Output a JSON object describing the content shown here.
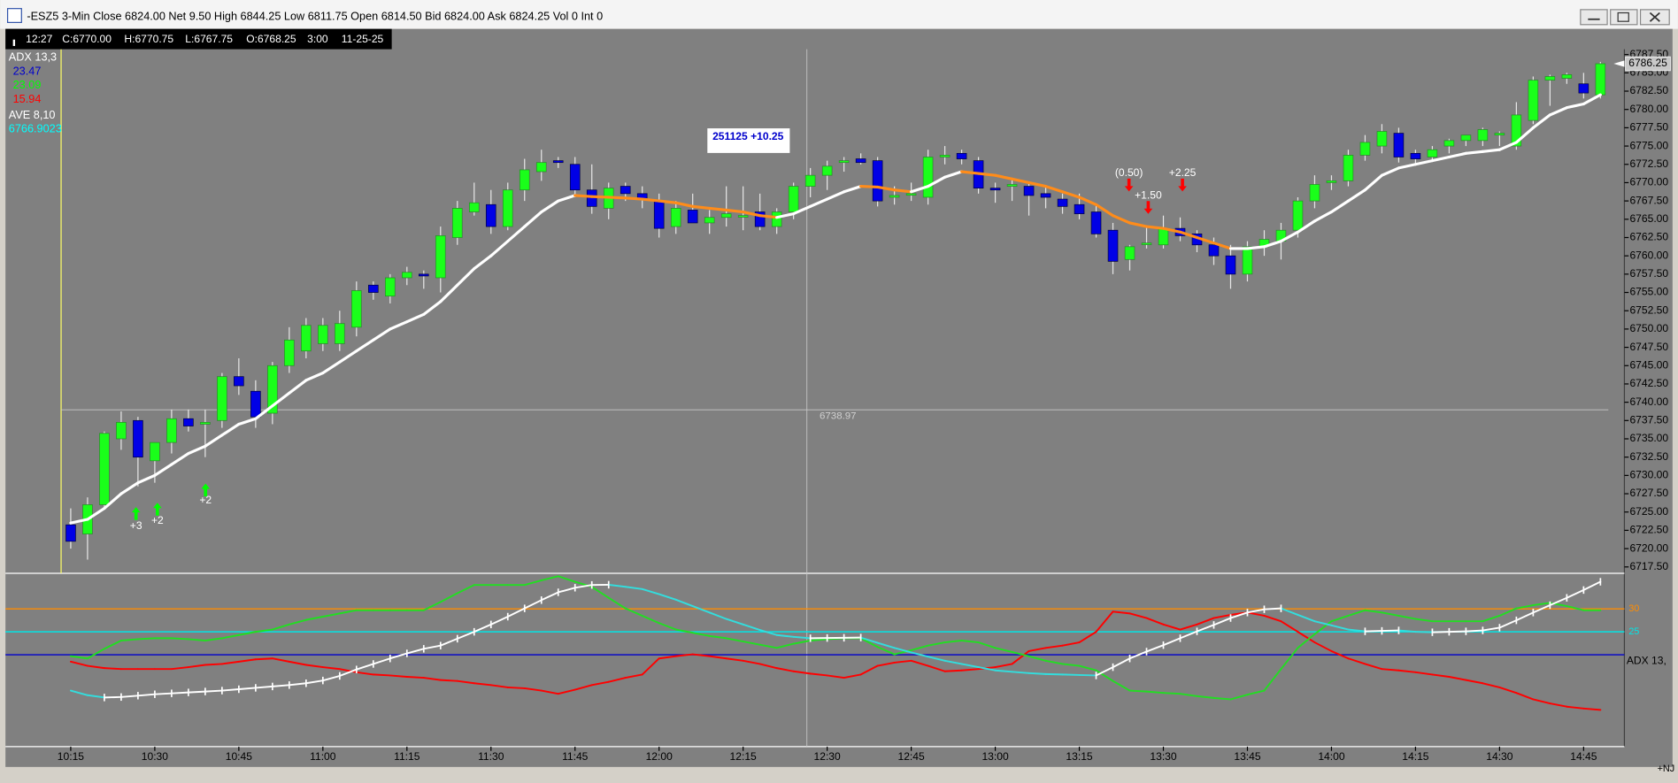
{
  "window": {
    "title": "-ESZ5 3-Min Close 6824.00 Net 9.50 High 6844.25 Low 6811.75 Open 6814.50 Bid 6824.00 Ask 6824.25 Vol 0 Int 0"
  },
  "info_bar": [
    "12:27",
    "C:6770.00",
    "H:6770.75",
    "L:6767.75",
    "O:6768.25",
    "3:00",
    "11-25-25"
  ],
  "corner_label": "+NJ",
  "chart_data": [
    {
      "type": "candlestick",
      "categories": [
        "10:15",
        null,
        null,
        null,
        null,
        "10:30",
        null,
        null,
        null,
        null,
        "10:45",
        null,
        null,
        null,
        null,
        "11:00",
        null,
        null,
        null,
        null,
        "11:15",
        null,
        null,
        null,
        null,
        "11:30",
        null,
        null,
        null,
        null,
        "11:45",
        null,
        null,
        null,
        null,
        "12:00",
        null,
        null,
        null,
        null,
        "12:15",
        null,
        null,
        null,
        null,
        "12:30",
        null,
        null,
        null,
        null,
        "12:45",
        null,
        null,
        null,
        null,
        "13:00",
        null,
        null,
        null,
        null,
        "13:15",
        null,
        null,
        null,
        null,
        "13:30",
        null,
        null,
        null,
        null,
        "13:45",
        null,
        null,
        null,
        null,
        "14:00",
        null,
        null,
        null,
        null,
        "14:15",
        null,
        null,
        null,
        null,
        "14:30",
        null,
        null,
        null,
        null,
        "14:45",
        null
      ],
      "open": [
        6723.25,
        6722,
        6726,
        6735,
        6737.5,
        6732,
        6734.5,
        6737.75,
        6737,
        6737.5,
        6743.5,
        6741.5,
        6738.5,
        6745,
        6747,
        6748,
        6748,
        6750.25,
        6756,
        6754.5,
        6757,
        6757.5,
        6757,
        6762.5,
        6766,
        6767,
        6764,
        6769,
        6771.5,
        6773,
        6772.5,
        6769,
        6766.5,
        6769.5,
        6768.5,
        6767.5,
        6764,
        6766.25,
        6764.5,
        6765.25,
        6765.5,
        6766,
        6764,
        6766,
        6769.5,
        6771,
        6772.75,
        6773.25,
        6773,
        6768,
        6768.5,
        6768,
        6773.5,
        6774,
        6773,
        6769.25,
        6769.5,
        6769.5,
        6768.5,
        6767.75,
        6767,
        6766,
        6763.5,
        6759.5,
        6761.75,
        6761.5,
        6763.75,
        6763,
        6761.5,
        6760,
        6757.5,
        6761.25,
        6762,
        6763.5,
        6767.5,
        6770,
        6770.25,
        6773.75,
        6775,
        6776.75,
        6774,
        6773.5,
        6775,
        6775.75,
        6775.75,
        6776.5,
        6775,
        6778.5,
        6784,
        6784.25,
        6783.5,
        6782
      ],
      "high": [
        6725.5,
        6727,
        6736,
        6738.75,
        6738,
        6734.5,
        6739,
        6739,
        6739,
        6744,
        6746,
        6743,
        6745.5,
        6750.25,
        6751.5,
        6751.5,
        6752.5,
        6756.5,
        6756.5,
        6757.5,
        6758.5,
        6758,
        6764,
        6767.5,
        6770,
        6769,
        6770,
        6773.25,
        6774.5,
        6773.5,
        6773.5,
        6772.5,
        6770,
        6770,
        6769.5,
        6768.5,
        6767.5,
        6768.5,
        6766.25,
        6769.5,
        6769.5,
        6768.5,
        6766.5,
        6770,
        6772,
        6773,
        6773.5,
        6774,
        6773.5,
        6769.5,
        6770,
        6774.5,
        6775,
        6774.5,
        6773.5,
        6770,
        6770.5,
        6770,
        6769.5,
        6768.5,
        6768.5,
        6767,
        6764.5,
        6761.5,
        6764,
        6765.5,
        6765.25,
        6763.5,
        6762.5,
        6761.5,
        6762,
        6763.5,
        6764.5,
        6768,
        6771,
        6771,
        6774.5,
        6776.5,
        6778,
        6777.5,
        6774.5,
        6775,
        6776,
        6776.5,
        6777.5,
        6777,
        6781,
        6784.5,
        6784.75,
        6785,
        6785,
        6786.5
      ],
      "low": [
        6720,
        6718.5,
        6725.5,
        6733.5,
        6728.5,
        6729,
        6733,
        6736,
        6732.5,
        6736.5,
        6741,
        6736.5,
        6737,
        6744,
        6746,
        6747,
        6747,
        6749,
        6754,
        6753.5,
        6756,
        6755.5,
        6755,
        6761.5,
        6765.5,
        6763,
        6763.5,
        6767.5,
        6770.25,
        6772,
        6768,
        6765.75,
        6765,
        6767.5,
        6766.5,
        6762.5,
        6763,
        6764.5,
        6763,
        6764,
        6763.5,
        6763.5,
        6763,
        6765,
        6768,
        6769,
        6771.5,
        6772.5,
        6766.75,
        6767,
        6767.5,
        6767,
        6772.5,
        6772.5,
        6768.5,
        6767.25,
        6767.5,
        6765.5,
        6766.5,
        6765.75,
        6765,
        6762.5,
        6757.5,
        6758,
        6761,
        6761,
        6762,
        6760.5,
        6758.75,
        6755.5,
        6756.5,
        6760,
        6759.5,
        6762.5,
        6766.5,
        6769,
        6769.5,
        6773,
        6774,
        6772.75,
        6772.5,
        6773,
        6774,
        6775,
        6775,
        6775,
        6774.5,
        6778,
        6780.5,
        6783.5,
        6781.5,
        6781.5
      ],
      "close": [
        6721,
        6726,
        6735.75,
        6737.25,
        6732.5,
        6734.5,
        6737.75,
        6736.75,
        6737.25,
        6743.5,
        6742.25,
        6738,
        6745,
        6748.5,
        6750.5,
        6750.5,
        6750.75,
        6755.25,
        6755,
        6757,
        6757.75,
        6757.25,
        6762.75,
        6766.5,
        6767.25,
        6764,
        6769,
        6771.75,
        6772.75,
        6772.75,
        6769,
        6766.75,
        6769.25,
        6768.5,
        6767.75,
        6763.75,
        6766.5,
        6764.5,
        6765.25,
        6765.75,
        6765.5,
        6764,
        6766,
        6769.5,
        6771,
        6772.25,
        6773,
        6772.75,
        6767.5,
        6768.25,
        6768.5,
        6773.5,
        6773.75,
        6773.25,
        6769.25,
        6769,
        6769.75,
        6768.25,
        6768,
        6766.75,
        6765.75,
        6763,
        6759.25,
        6761.25,
        6761.75,
        6763.75,
        6762.75,
        6761.5,
        6760,
        6757.5,
        6761.25,
        6762.25,
        6763.5,
        6767.5,
        6769.75,
        6770.25,
        6773.75,
        6775.5,
        6777,
        6773.5,
        6773.25,
        6774.5,
        6775.75,
        6776.5,
        6777.25,
        6776.75,
        6779.25,
        6784,
        6784.5,
        6784.75,
        6782.25,
        6786.25
      ],
      "up_color": "#1aff1a",
      "down_color": "#0000e6",
      "ma": {
        "up_color": "#ffffff",
        "down_color": "#ff8c1a",
        "values": [
          6723.5,
          6724,
          6725.5,
          6727.5,
          6729,
          6730,
          6731.5,
          6733,
          6734,
          6735.5,
          6737,
          6737.75,
          6739.5,
          6741.25,
          6743,
          6744,
          6745.5,
          6747,
          6748.5,
          6750,
          6751,
          6752,
          6753.75,
          6756,
          6758.25,
          6760,
          6762,
          6764,
          6766,
          6767.5,
          6768.25,
          6768.1,
          6768,
          6767.9,
          6767.75,
          6767.5,
          6767.25,
          6766.75,
          6766.5,
          6766.25,
          6766,
          6765.5,
          6765.25,
          6765.75,
          6766.75,
          6767.75,
          6768.75,
          6769.5,
          6769.4,
          6769,
          6768.75,
          6769.5,
          6770.75,
          6771.5,
          6771.25,
          6771,
          6770.5,
          6770,
          6769.5,
          6768.75,
          6768,
          6767,
          6765.5,
          6764.5,
          6764,
          6763.75,
          6763.25,
          6762.5,
          6761.75,
          6761,
          6761,
          6761.25,
          6762,
          6763.25,
          6764.75,
          6766,
          6767.5,
          6769,
          6771,
          6772,
          6772.5,
          6773,
          6773.5,
          6774,
          6774.25,
          6774.5,
          6775.5,
          6777.5,
          6779.25,
          6780.25,
          6780.75,
          6782
        ]
      },
      "legend": [
        {
          "text": "AVE  8,10",
          "color": "#ffffff"
        },
        {
          "text": "6766.9023",
          "color": "#00ffff"
        }
      ],
      "ylim": [
        6717.5,
        6787.5
      ],
      "yticks": [
        {
          "value": 6717.5,
          "label": "6717.50"
        },
        {
          "value": 6720,
          "label": "6720.00"
        },
        {
          "value": 6722.5,
          "label": "6722.50"
        },
        {
          "value": 6725,
          "label": "6725.00"
        },
        {
          "value": 6727.5,
          "label": "6727.50"
        },
        {
          "value": 6730,
          "label": "6730.00"
        },
        {
          "value": 6732.5,
          "label": "6732.50"
        },
        {
          "value": 6735,
          "label": "6735.00"
        },
        {
          "value": 6737.5,
          "label": "6737.50"
        },
        {
          "value": 6740,
          "label": "6740.00"
        },
        {
          "value": 6742.5,
          "label": "6742.50"
        },
        {
          "value": 6745,
          "label": "6745.00"
        },
        {
          "value": 6747.5,
          "label": "6747.50"
        },
        {
          "value": 6750,
          "label": "6750.00"
        },
        {
          "value": 6752.5,
          "label": "6752.50"
        },
        {
          "value": 6755,
          "label": "6755.00"
        },
        {
          "value": 6757.5,
          "label": "6757.50"
        },
        {
          "value": 6760,
          "label": "6760.00"
        },
        {
          "value": 6762.5,
          "label": "6762.50"
        },
        {
          "value": 6765,
          "label": "6765.00"
        },
        {
          "value": 6767.5,
          "label": "6767.50"
        },
        {
          "value": 6770,
          "label": "6770.00"
        },
        {
          "value": 6772.5,
          "label": "6772.50"
        },
        {
          "value": 6775,
          "label": "6775.00"
        },
        {
          "value": 6777.5,
          "label": "6777.50"
        },
        {
          "value": 6780,
          "label": "6780.00"
        },
        {
          "value": 6782.5,
          "label": "6782.50"
        },
        {
          "value": 6785,
          "label": "6785.00"
        },
        {
          "value": 6787.5,
          "label": "6787.50"
        }
      ],
      "last_price": {
        "value": 6786.25,
        "label": "6786.25"
      },
      "crosshair": {
        "value": 6738.97,
        "label": "6738.97"
      },
      "box_label": "251125  +10.25",
      "signals": [
        {
          "label": "+3",
          "direction": "up",
          "color": "#00ff00"
        },
        {
          "label": "+2",
          "direction": "up",
          "color": "#00ff00"
        },
        {
          "label": "+2",
          "direction": "up",
          "color": "#00ff00"
        },
        {
          "label": "(0.50)",
          "direction": "down",
          "color": "#ff0000"
        },
        {
          "label": "+1.50",
          "direction": "down",
          "color": "#ff0000"
        },
        {
          "label": "+2.25",
          "direction": "down",
          "color": "#ff0000"
        }
      ]
    },
    {
      "type": "line",
      "legend": [
        {
          "text": "ADX  13,3",
          "color": "#ffffff"
        },
        {
          "text": "23.47",
          "color": "#0000cc"
        },
        {
          "text": "23.09",
          "color": "#00ff00"
        },
        {
          "text": "15.94",
          "color": "#ff0000"
        }
      ],
      "axis_label": "ADX  13,",
      "ylim": [
        0,
        37.5
      ],
      "yticks": [
        30,
        25
      ],
      "ytick_colors": [
        "#ff8c00",
        "#00e5e5"
      ],
      "reference_lines": [
        {
          "value": 20,
          "color": "#0000cc"
        }
      ],
      "series": [
        {
          "color": "#ff0000",
          "values": [
            18.5,
            17.6,
            17.1,
            16.9,
            16.9,
            16.9,
            16.9,
            17.3,
            17.8,
            18,
            18.5,
            19,
            19.2,
            18.5,
            17.8,
            17.3,
            16.9,
            16.2,
            15.7,
            15.5,
            15.2,
            15,
            14.5,
            14.3,
            13.8,
            13.4,
            12.9,
            12.7,
            12.2,
            11.5,
            12.4,
            13.4,
            14.1,
            15,
            15.7,
            19.2,
            19.7,
            20.1,
            19.7,
            19.2,
            18.7,
            18,
            17.1,
            16.4,
            15.9,
            15.5,
            15,
            15.7,
            17.6,
            18.3,
            18.7,
            17.6,
            16.4,
            16.6,
            16.9,
            17.3,
            18,
            20.8,
            21.5,
            22,
            22.7,
            25,
            29.4,
            29,
            28,
            26.6,
            25.5,
            26.6,
            28,
            28.7,
            29.2,
            28.5,
            27.3,
            25,
            22.7,
            20.8,
            19.2,
            18,
            16.9,
            16.6,
            16.2,
            15.7,
            15.2,
            14.5,
            13.8,
            12.9,
            11.7,
            10.3,
            9.4,
            8.7,
            8.3,
            8
          ]
        },
        {
          "color": "#22dd22",
          "values": [
            19.7,
            19.2,
            21.3,
            23.1,
            23.4,
            23.6,
            23.6,
            23.4,
            23.1,
            23.6,
            24.3,
            25,
            25.5,
            26.6,
            27.6,
            28.3,
            29,
            29.7,
            29.7,
            29.7,
            29.7,
            29.7,
            31.5,
            33.4,
            35.2,
            35.2,
            35.2,
            35.2,
            36.2,
            37.1,
            35.9,
            34.8,
            32.4,
            30.1,
            28.5,
            26.9,
            25.5,
            24.8,
            24.1,
            23.6,
            22.9,
            22.2,
            21.5,
            22.4,
            23.1,
            23.4,
            23.6,
            23.6,
            21.7,
            20.1,
            21,
            22,
            22.7,
            23.1,
            22.7,
            21.5,
            20.6,
            19.7,
            18.7,
            18,
            17.6,
            16.6,
            14.3,
            12.2,
            12,
            11.7,
            11.5,
            11,
            10.6,
            10.3,
            11.3,
            12.2,
            16.9,
            21.5,
            24.5,
            27.3,
            28.5,
            29.7,
            29.2,
            28.5,
            27.8,
            27.3,
            27.3,
            27.3,
            27.3,
            28.5,
            30.1,
            30.8,
            31.3,
            30.6,
            29.7,
            29.7
          ]
        },
        {
          "color": "#ffffff",
          "down_color": "#33dddd",
          "markers": true,
          "values": [
            12.2,
            11.2,
            10.7,
            10.8,
            11.1,
            11.4,
            11.6,
            11.8,
            12,
            12.2,
            12.5,
            12.8,
            13.1,
            13.4,
            13.8,
            14.4,
            15.4,
            16.8,
            18,
            19.2,
            20.3,
            21.3,
            22,
            23.5,
            25,
            26.6,
            28.3,
            30.1,
            31.9,
            33.6,
            34.6,
            35.2,
            35.25,
            34.8,
            34.3,
            33.2,
            32,
            30.6,
            29.2,
            27.8,
            26.6,
            25.4,
            24.3,
            23.9,
            23.6,
            23.65,
            23.7,
            23.75,
            22.6,
            21.5,
            20.5,
            19.6,
            18.7,
            18,
            17.3,
            16.6,
            16.3,
            16,
            15.8,
            15.7,
            15.6,
            15.5,
            17.3,
            19.2,
            20.7,
            22.1,
            23.6,
            25.1,
            26.5,
            28,
            29.2,
            29.9,
            30.1,
            28.7,
            27.3,
            26.4,
            25.5,
            25.1,
            25.2,
            25.3,
            25,
            24.9,
            25,
            25.1,
            25.3,
            25.9,
            27.5,
            29.2,
            30.8,
            32.4,
            34.1,
            35.9
          ]
        }
      ]
    }
  ]
}
